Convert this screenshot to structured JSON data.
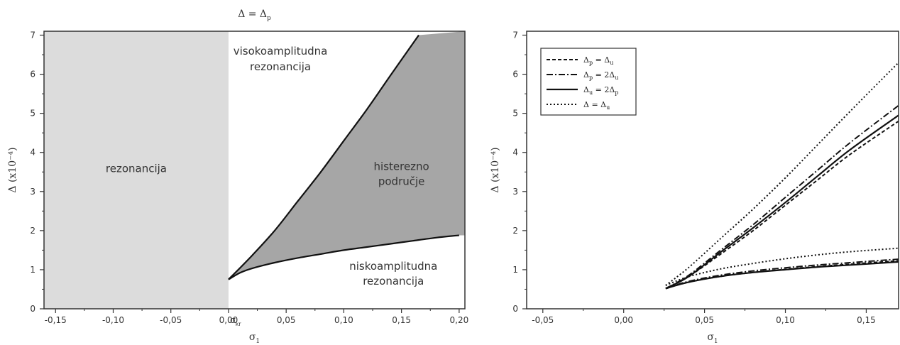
{
  "chart_data": [
    {
      "type": "area",
      "title": "Δ = Δp",
      "xlabel": "σ1",
      "ylabel": "Δ (x10⁻⁴)",
      "xlim": [
        -0.16,
        0.205
      ],
      "ylim": [
        0,
        7.1
      ],
      "xticks": [
        -0.15,
        -0.1,
        -0.05,
        0.0,
        0.05,
        0.1,
        0.15,
        0.2
      ],
      "xtick_labels": [
        "-0,15",
        "-0,10",
        "-0,05",
        "0,00",
        "0,05",
        "0,10",
        "0,15",
        "0,20"
      ],
      "extra_xtick": {
        "value": 0.0,
        "label": "σkr"
      },
      "yticks": [
        0,
        1,
        2,
        3,
        4,
        5,
        6,
        7
      ],
      "ytick_labels": [
        "0",
        "1",
        "2",
        "3",
        "4",
        "5",
        "6",
        "7"
      ],
      "sigma_kr": 0.0,
      "grid": false,
      "regions": [
        {
          "name": "rezonancija",
          "label": "rezonancija",
          "x_range": [
            -0.16,
            0.0
          ],
          "color": "#dcdcdc"
        },
        {
          "name": "histerezno-podrucje",
          "label": "histerezno područje",
          "color": "#a6a6a6"
        }
      ],
      "labels": {
        "upper": [
          "visokoamplitudna",
          "rezonancija"
        ],
        "lower": [
          "niskoamplitudna",
          "rezonancija"
        ],
        "hysteresis": [
          "histerezno",
          "područje"
        ],
        "left": "rezonancija"
      },
      "series": [
        {
          "role": "upper-boundary",
          "x": [
            0.0,
            0.02,
            0.04,
            0.06,
            0.08,
            0.1,
            0.12,
            0.14,
            0.165
          ],
          "y": [
            0.75,
            1.35,
            2.0,
            2.75,
            3.5,
            4.3,
            5.1,
            5.95,
            7.0
          ]
        },
        {
          "role": "lower-boundary",
          "x": [
            0.0,
            0.01,
            0.02,
            0.04,
            0.06,
            0.08,
            0.1,
            0.12,
            0.14,
            0.16,
            0.18,
            0.2
          ],
          "y": [
            0.75,
            0.92,
            1.03,
            1.18,
            1.3,
            1.4,
            1.5,
            1.58,
            1.66,
            1.74,
            1.82,
            1.88
          ]
        }
      ]
    },
    {
      "type": "line",
      "title": "",
      "xlabel": "σ1",
      "ylabel": "Δ (x10⁻⁴)",
      "xlim": [
        -0.06,
        0.17
      ],
      "ylim": [
        0,
        7.1
      ],
      "xticks": [
        -0.05,
        0.0,
        0.05,
        0.1,
        0.15
      ],
      "xtick_labels": [
        "-0,05",
        "0,00",
        "0,05",
        "0,10",
        "0,15"
      ],
      "yticks": [
        0,
        1,
        2,
        3,
        4,
        5,
        6,
        7
      ],
      "ytick_labels": [
        "0",
        "1",
        "2",
        "3",
        "4",
        "5",
        "6",
        "7"
      ],
      "grid": false,
      "legend_position": "top-left",
      "legend": [
        {
          "label": "Δp = Δu",
          "dash": "5,3"
        },
        {
          "label": "Δp = 2Δu",
          "dash": "9,3,2,3"
        },
        {
          "label": "Δu = 2Δp",
          "dash": ""
        },
        {
          "label": "Δ = Δu",
          "dash": "2,3"
        }
      ],
      "series": [
        {
          "legend_index": 0,
          "branch": "upper",
          "x": [
            0.026,
            0.04,
            0.06,
            0.08,
            0.1,
            0.12,
            0.14,
            0.17
          ],
          "y": [
            0.52,
            0.82,
            1.4,
            2.0,
            2.65,
            3.3,
            3.95,
            4.8
          ]
        },
        {
          "legend_index": 0,
          "branch": "lower",
          "x": [
            0.026,
            0.04,
            0.06,
            0.08,
            0.1,
            0.12,
            0.14,
            0.17
          ],
          "y": [
            0.52,
            0.68,
            0.83,
            0.93,
            1.01,
            1.08,
            1.14,
            1.23
          ]
        },
        {
          "legend_index": 1,
          "branch": "upper",
          "x": [
            0.026,
            0.04,
            0.06,
            0.08,
            0.1,
            0.12,
            0.14,
            0.17
          ],
          "y": [
            0.52,
            0.85,
            1.5,
            2.15,
            2.85,
            3.55,
            4.25,
            5.2
          ]
        },
        {
          "legend_index": 1,
          "branch": "lower",
          "x": [
            0.026,
            0.04,
            0.06,
            0.08,
            0.1,
            0.12,
            0.14,
            0.17
          ],
          "y": [
            0.52,
            0.7,
            0.86,
            0.97,
            1.05,
            1.12,
            1.18,
            1.27
          ]
        },
        {
          "legend_index": 2,
          "branch": "upper",
          "x": [
            0.026,
            0.04,
            0.06,
            0.08,
            0.1,
            0.12,
            0.14,
            0.17
          ],
          "y": [
            0.52,
            0.82,
            1.45,
            2.07,
            2.72,
            3.4,
            4.07,
            4.95
          ]
        },
        {
          "legend_index": 2,
          "branch": "lower",
          "x": [
            0.026,
            0.04,
            0.06,
            0.08,
            0.1,
            0.12,
            0.14,
            0.17
          ],
          "y": [
            0.52,
            0.68,
            0.83,
            0.93,
            1.0,
            1.07,
            1.12,
            1.2
          ]
        },
        {
          "legend_index": 3,
          "branch": "upper",
          "x": [
            0.026,
            0.04,
            0.06,
            0.08,
            0.1,
            0.12,
            0.14,
            0.17
          ],
          "y": [
            0.6,
            1.05,
            1.8,
            2.55,
            3.35,
            4.2,
            5.05,
            6.3
          ]
        },
        {
          "legend_index": 3,
          "branch": "lower",
          "x": [
            0.026,
            0.04,
            0.06,
            0.08,
            0.1,
            0.12,
            0.14,
            0.17
          ],
          "y": [
            0.6,
            0.82,
            1.02,
            1.16,
            1.28,
            1.38,
            1.46,
            1.55
          ]
        }
      ]
    }
  ]
}
